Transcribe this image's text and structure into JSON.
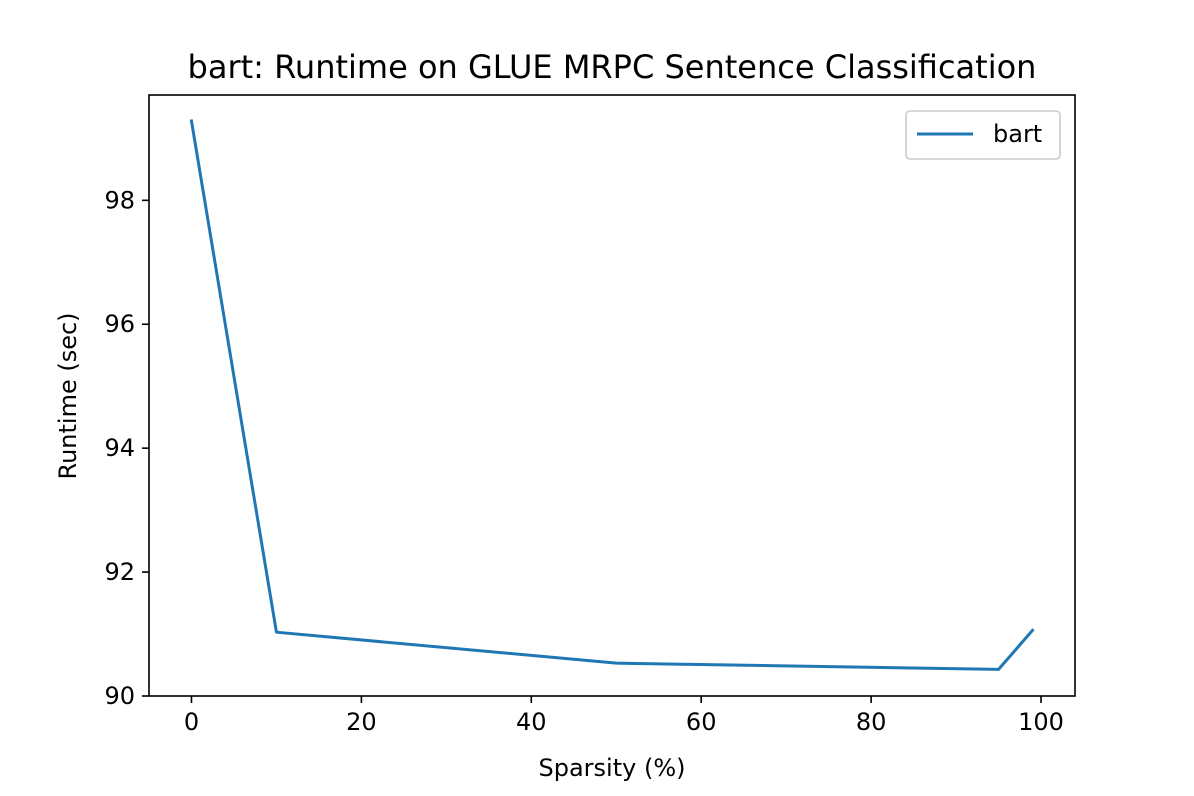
{
  "chart_data": {
    "type": "line",
    "title": "bart: Runtime on GLUE MRPC Sentence Classification",
    "xlabel": "Sparsity (%)",
    "ylabel": "Runtime (sec)",
    "xlim": [
      -5,
      104
    ],
    "ylim": [
      90,
      99.7
    ],
    "xticks": [
      0,
      20,
      40,
      60,
      80,
      100
    ],
    "yticks": [
      90,
      92,
      94,
      96,
      98
    ],
    "grid": false,
    "legend": "top-right",
    "series": [
      {
        "name": "bart",
        "color": "#1f77b4",
        "x": [
          0,
          10,
          50,
          95,
          99
        ],
        "y": [
          99.28,
          91.03,
          90.53,
          90.43,
          91.06
        ]
      }
    ]
  }
}
